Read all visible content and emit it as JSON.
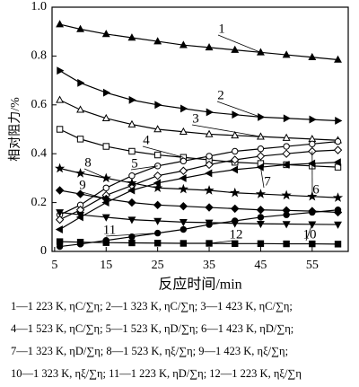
{
  "chart_data": {
    "type": "line",
    "ylabel": "相对阻力/%",
    "xlabel": "反应时间/min",
    "xlim": [
      4.5,
      62
    ],
    "xticks": [
      5,
      15,
      25,
      35,
      45,
      55
    ],
    "ylim": [
      0,
      1
    ],
    "yticks": [
      0,
      0.2,
      0.4,
      0.6,
      0.8,
      {
        "value": 1,
        "label": "1.0"
      }
    ],
    "x": [
      6,
      10,
      15,
      20,
      25,
      30,
      35,
      40,
      45,
      50,
      55,
      60
    ],
    "series": [
      {
        "name": "1",
        "color": "#000",
        "marker": "triangle-up",
        "filled": true,
        "values": [
          0.93,
          0.91,
          0.89,
          0.875,
          0.86,
          0.845,
          0.835,
          0.825,
          0.815,
          0.805,
          0.795,
          0.785
        ]
      },
      {
        "name": "2",
        "color": "#000",
        "marker": "triangle-right",
        "filled": true,
        "values": [
          0.74,
          0.69,
          0.65,
          0.62,
          0.6,
          0.585,
          0.57,
          0.56,
          0.55,
          0.545,
          0.54,
          0.535
        ]
      },
      {
        "name": "3",
        "color": "#000",
        "marker": "triangle-up",
        "filled": false,
        "values": [
          0.62,
          0.58,
          0.545,
          0.52,
          0.5,
          0.49,
          0.48,
          0.475,
          0.47,
          0.465,
          0.46,
          0.455
        ]
      },
      {
        "name": "4",
        "color": "#000",
        "marker": "square",
        "filled": false,
        "values": [
          0.5,
          0.46,
          0.43,
          0.41,
          0.395,
          0.385,
          0.375,
          0.365,
          0.36,
          0.355,
          0.35,
          0.345
        ]
      },
      {
        "name": "5",
        "color": "#000",
        "marker": "circle",
        "filled": false,
        "values": [
          0.15,
          0.19,
          0.26,
          0.31,
          0.35,
          0.37,
          0.39,
          0.41,
          0.42,
          0.43,
          0.44,
          0.45
        ]
      },
      {
        "name": "6",
        "color": "#000",
        "marker": "diamond",
        "filled": false,
        "values": [
          0.13,
          0.17,
          0.23,
          0.27,
          0.31,
          0.33,
          0.355,
          0.375,
          0.39,
          0.4,
          0.41,
          0.415
        ]
      },
      {
        "name": "7",
        "color": "#000",
        "marker": "triangle-left",
        "filled": true,
        "values": [
          0.09,
          0.14,
          0.2,
          0.25,
          0.28,
          0.3,
          0.32,
          0.335,
          0.345,
          0.355,
          0.36,
          0.365
        ]
      },
      {
        "name": "8",
        "color": "#000",
        "marker": "star",
        "filled": true,
        "values": [
          0.34,
          0.32,
          0.3,
          0.28,
          0.26,
          0.255,
          0.25,
          0.24,
          0.235,
          0.23,
          0.225,
          0.22
        ]
      },
      {
        "name": "9",
        "color": "#000",
        "marker": "diamond",
        "filled": true,
        "values": [
          0.25,
          0.235,
          0.215,
          0.2,
          0.19,
          0.185,
          0.18,
          0.175,
          0.17,
          0.168,
          0.165,
          0.16
        ]
      },
      {
        "name": "10",
        "color": "#000",
        "marker": "triangle-down",
        "filled": true,
        "values": [
          0.16,
          0.15,
          0.14,
          0.13,
          0.125,
          0.12,
          0.118,
          0.115,
          0.113,
          0.112,
          0.111,
          0.11
        ]
      },
      {
        "name": "11",
        "color": "#000",
        "marker": "circle",
        "filled": true,
        "values": [
          0.02,
          0.03,
          0.045,
          0.06,
          0.075,
          0.09,
          0.11,
          0.125,
          0.14,
          0.15,
          0.16,
          0.17
        ]
      },
      {
        "name": "12",
        "color": "#000",
        "marker": "square",
        "filled": true,
        "values": [
          0.04,
          0.038,
          0.036,
          0.035,
          0.034,
          0.033,
          0.033,
          0.032,
          0.032,
          0.031,
          0.031,
          0.03
        ]
      }
    ],
    "caption": [
      "1—1 223 K, ηC/∑η; 2—1 323 K, ηC/∑η; 3—1 423 K, ηC/∑η;",
      "4—1 523 K, ηC/∑η; 5—1 523 K, ηD/∑η; 6—1 423 K, ηD/∑η;",
      "7—1 323 K, ηD/∑η; 8—1 523 K, ηξ/∑η; 9—1 423 K, ηξ/∑η;",
      "10—1 323 K, ηξ/∑η; 11—1 223 K, ηD/∑η; 12—1 223 K, ηξ/∑η"
    ]
  }
}
